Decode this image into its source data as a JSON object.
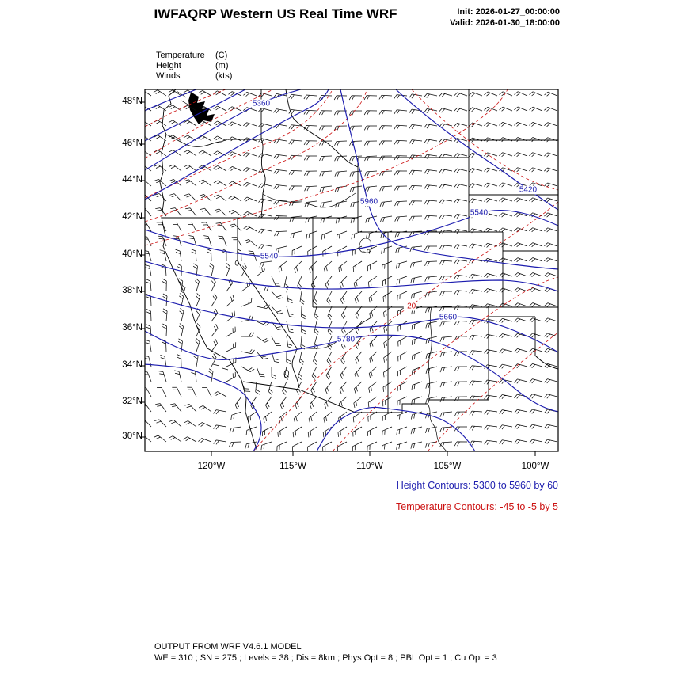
{
  "header": {
    "title": "IWFAQRP Western US Real Time WRF",
    "init_label": "Init: 2026-01-27_00:00:00",
    "valid_label": "Valid: 2026-01-30_18:00:00"
  },
  "field_legend": {
    "items": [
      {
        "name": "Temperature",
        "units": "(C)"
      },
      {
        "name": "Height",
        "units": "(m)"
      },
      {
        "name": "Winds",
        "units": "(kts)"
      }
    ]
  },
  "axes": {
    "lat": [
      "48°N",
      "46°N",
      "44°N",
      "42°N",
      "40°N",
      "38°N",
      "36°N",
      "34°N",
      "32°N",
      "30°N"
    ],
    "lon": [
      "120°W",
      "115°W",
      "110°W",
      "105°W",
      "100°W"
    ]
  },
  "contour_labels": {
    "height": [
      "5360",
      "5960",
      "5420",
      "5540",
      "5540",
      "5660",
      "5780"
    ],
    "temperature": [
      "-20"
    ]
  },
  "captions": {
    "height_contours": "Height Contours: 5300 to 5960 by 60",
    "temperature_contours": "Temperature Contours: -45 to -5 by 5"
  },
  "footer": {
    "line1": "OUTPUT FROM WRF V4.6.1 MODEL",
    "line2": "WE = 310 ; SN = 275 ; Levels = 38 ; Dis = 8km ; Phys Opt = 8 ; PBL Opt = 1 ; Cu Opt = 3"
  },
  "colors": {
    "height_contour": "#1c1cae",
    "temperature_contour": "#cc1111",
    "map_outline": "#000000",
    "wind_barbs": "#0a0a0a"
  },
  "chart_data": {
    "type": "contour-map",
    "title": "IWFAQRP Western US Real Time WRF",
    "model": "WRF V4.6.1",
    "region": "Western US",
    "init_time": "2026-01-27_00:00:00",
    "valid_time": "2026-01-30_18:00:00",
    "fields": [
      {
        "name": "Temperature",
        "units": "C",
        "render": "red dashed contours",
        "min": -45,
        "max": -5,
        "interval": 5
      },
      {
        "name": "Height",
        "units": "m",
        "render": "blue solid contours",
        "min": 5300,
        "max": 5960,
        "interval": 60
      },
      {
        "name": "Winds",
        "units": "kts",
        "render": "wind barbs"
      }
    ],
    "x_ticks": [
      "120°W",
      "115°W",
      "110°W",
      "105°W",
      "100°W"
    ],
    "y_ticks": [
      "48°N",
      "46°N",
      "44°N",
      "42°N",
      "40°N",
      "38°N",
      "36°N",
      "34°N",
      "32°N",
      "30°N"
    ],
    "height_labels_on_map": [
      5360,
      5960,
      5420,
      5540,
      5540,
      5660,
      5780
    ],
    "temperature_labels_on_map": [
      -20
    ],
    "grid_info": "WE = 310 ; SN = 275 ; Levels = 38 ; Dis = 8km ; Phys Opt = 8 ; PBL Opt = 1 ; Cu Opt = 3"
  }
}
